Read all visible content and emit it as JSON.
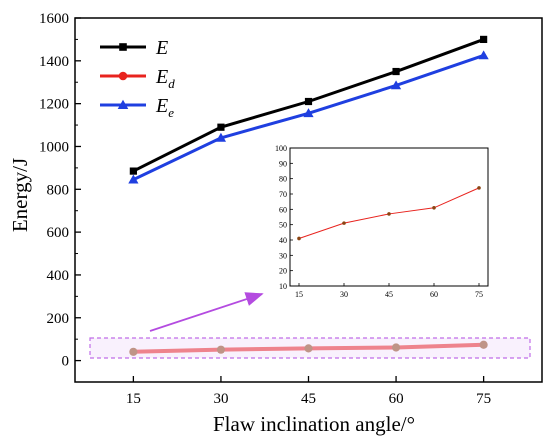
{
  "chart_data": [
    {
      "type": "line",
      "categories": [
        "15",
        "30",
        "45",
        "60",
        "75"
      ],
      "x": [
        15,
        30,
        45,
        60,
        75
      ],
      "xlabel": "Flaw inclination angle/°",
      "ylabel": "Energy/J",
      "xlim": [
        5,
        85
      ],
      "ylim": [
        -100,
        1600
      ],
      "xticks": [
        "15",
        "30",
        "45",
        "60",
        "75"
      ],
      "yticks": [
        "0",
        "200",
        "400",
        "600",
        "800",
        "1000",
        "1200",
        "1400",
        "1600"
      ],
      "legend_position": "top-left",
      "grid": false,
      "series": [
        {
          "name": "E",
          "sub": "",
          "color": "#000000",
          "marker": "square",
          "values": [
            885,
            1090,
            1210,
            1350,
            1500
          ]
        },
        {
          "name": "E",
          "sub": "d",
          "color": "#e8231e",
          "marker": "circle",
          "values": [
            41,
            51,
            57,
            61,
            74
          ]
        },
        {
          "name": "E",
          "sub": "e",
          "color": "#1f3fe0",
          "marker": "triangle",
          "values": [
            845,
            1040,
            1155,
            1285,
            1425
          ]
        }
      ]
    },
    {
      "type": "line",
      "role": "inset",
      "x": [
        15,
        30,
        45,
        60,
        75
      ],
      "xlim": [
        12,
        78
      ],
      "ylim": [
        10,
        100
      ],
      "xticks": [
        "15",
        "30",
        "45",
        "60",
        "75"
      ],
      "yticks": [
        "10",
        "20",
        "30",
        "40",
        "50",
        "60",
        "70",
        "80",
        "90",
        "100"
      ],
      "series": [
        {
          "color": "#e8231e",
          "values": [
            41,
            51,
            57,
            61,
            74
          ]
        }
      ]
    }
  ]
}
